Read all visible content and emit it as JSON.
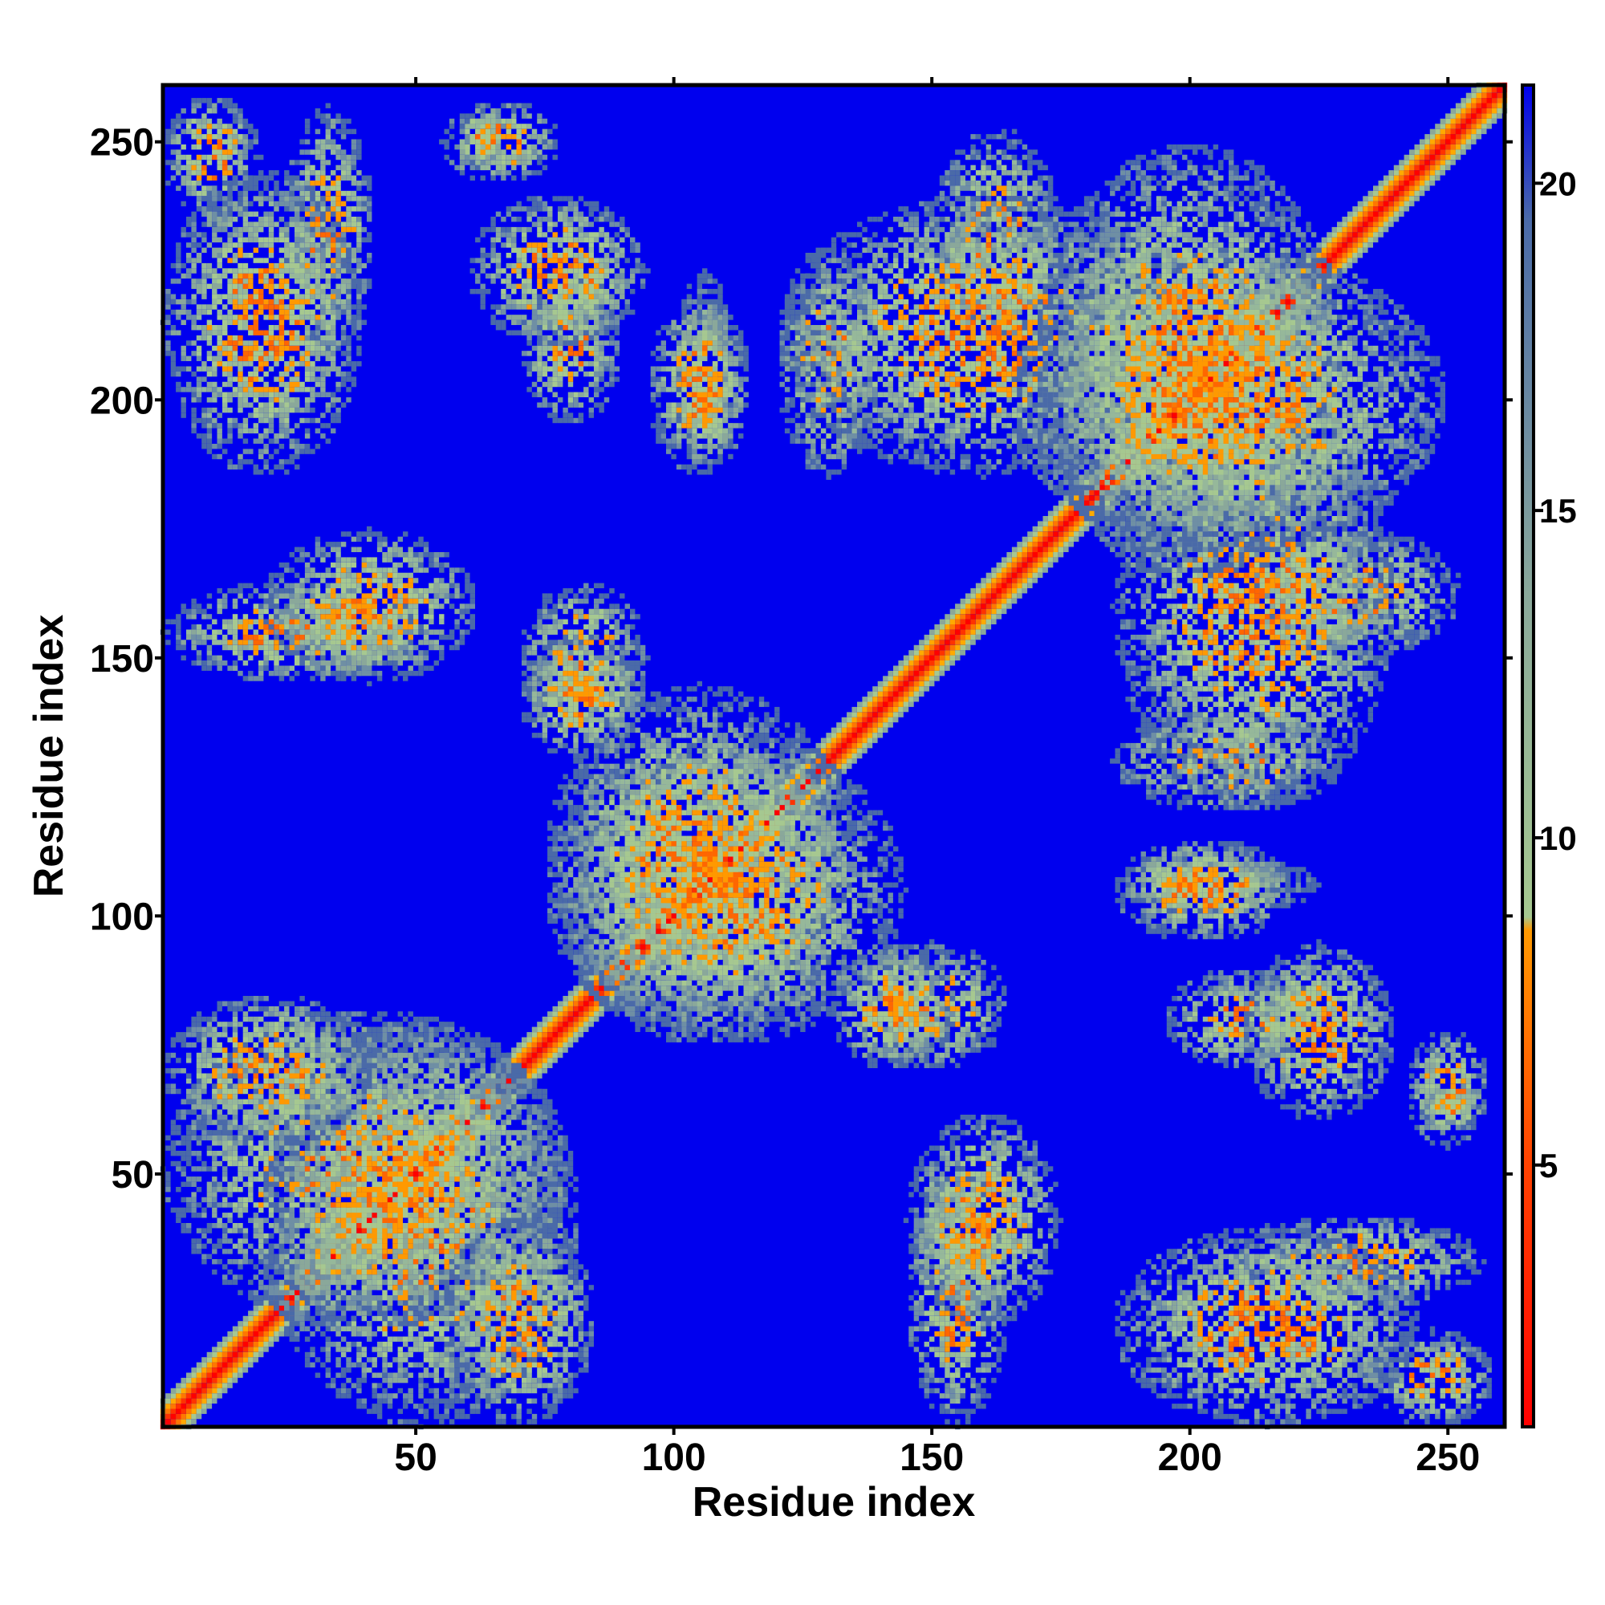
{
  "chart_data": {
    "type": "heatmap",
    "title": "",
    "xlabel": "Residue index",
    "ylabel": "Residue index",
    "n_residues": 261,
    "xlim": [
      1,
      261
    ],
    "ylim": [
      1,
      261
    ],
    "x_ticks": [
      50,
      100,
      150,
      200,
      250
    ],
    "y_ticks": [
      50,
      100,
      150,
      200,
      250
    ],
    "colorbar": {
      "ticks": [
        5,
        10,
        15,
        20
      ],
      "range": [
        1,
        21.5
      ],
      "colors": [
        {
          "value": 1,
          "color": "#ff0000"
        },
        {
          "value": 5,
          "color": "#ff4400"
        },
        {
          "value": 8.5,
          "color": "#ff9900"
        },
        {
          "value": 9,
          "color": "#a6c890"
        },
        {
          "value": 14,
          "color": "#8aa89a"
        },
        {
          "value": 20,
          "color": "#4a6aa8"
        },
        {
          "value": 21.5,
          "color": "#0000ee"
        }
      ]
    },
    "background_color": "#0000ee",
    "contact_regions": [
      {
        "x": [
          1,
          261
        ],
        "y": [
          1,
          261
        ],
        "diagonal": true
      },
      {
        "x": [
          1,
          20
        ],
        "y": [
          235,
          259
        ]
      },
      {
        "x": [
          24,
          42
        ],
        "y": [
          208,
          257
        ]
      },
      {
        "x": [
          58,
          68
        ],
        "y": [
          245,
          257
        ]
      },
      {
        "x": [
          70,
          90
        ],
        "y": [
          195,
          225
        ]
      },
      {
        "x": [
          100,
          112
        ],
        "y": [
          185,
          225
        ]
      },
      {
        "x": [
          120,
          140
        ],
        "y": [
          185,
          230
        ]
      },
      {
        "x": [
          150,
          175
        ],
        "y": [
          210,
          253
        ]
      },
      {
        "x": [
          1,
          52
        ],
        "y": [
          145,
          165
        ]
      },
      {
        "x": [
          70,
          95
        ],
        "y": [
          135,
          165
        ]
      },
      {
        "x": [
          75,
          145
        ],
        "y": [
          75,
          135
        ]
      },
      {
        "x": [
          1,
          80
        ],
        "y": [
          20,
          82
        ]
      },
      {
        "x": [
          55,
          85
        ],
        "y": [
          1,
          42
        ]
      },
      {
        "x": [
          130,
          155
        ],
        "y": [
          70,
          95
        ]
      },
      {
        "x": [
          145,
          175
        ],
        "y": [
          20,
          62
        ]
      },
      {
        "x": [
          185,
          245
        ],
        "y": [
          1,
          40
        ]
      },
      {
        "x": [
          210,
          240
        ],
        "y": [
          60,
          95
        ]
      },
      {
        "x": [
          185,
          220
        ],
        "y": [
          95,
          115
        ]
      },
      {
        "x": [
          185,
          240
        ],
        "y": [
          120,
          200
        ]
      },
      {
        "x": [
          165,
          250
        ],
        "y": [
          170,
          230
        ]
      },
      {
        "x": [
          242,
          258
        ],
        "y": [
          55,
          78
        ]
      }
    ]
  }
}
